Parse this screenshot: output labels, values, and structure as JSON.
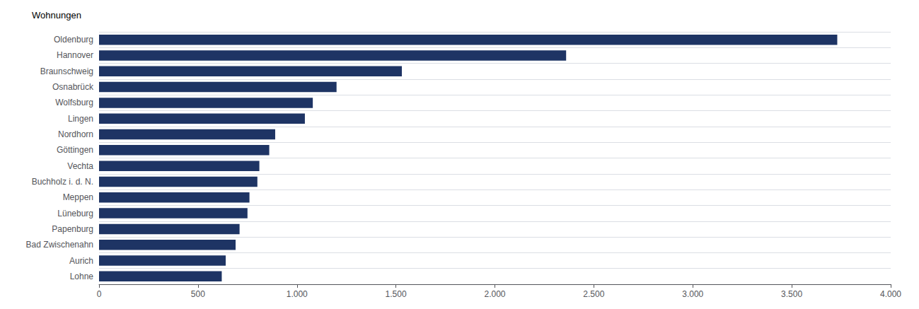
{
  "chart_data": {
    "type": "bar",
    "orientation": "horizontal",
    "xlabel": "Wohnungen",
    "categories": [
      "Lohne",
      "Aurich",
      "Bad Zwischenahn",
      "Papenburg",
      "Lüneburg",
      "Meppen",
      "Buchholz i. d. N.",
      "Vechta",
      "Göttingen",
      "Nordhorn",
      "Lingen",
      "Wolfsburg",
      "Osnabrück",
      "Braunschweig",
      "Hannover",
      "Oldenburg"
    ],
    "values": [
      620,
      640,
      690,
      710,
      750,
      760,
      800,
      810,
      860,
      890,
      1040,
      1080,
      1200,
      1530,
      2360,
      3730
    ],
    "color": "#1e3464",
    "xlim": [
      0,
      4000
    ],
    "xticks": [
      0,
      500,
      {
        "value": 1000,
        "label": "1.000"
      },
      {
        "value": 1500,
        "label": "1.500"
      },
      {
        "value": 2000,
        "label": "2.000"
      },
      {
        "value": 2500,
        "label": "2.500"
      },
      {
        "value": 3000,
        "label": "3.000"
      },
      {
        "value": 3500,
        "label": "3.500"
      },
      {
        "value": 4000,
        "label": "4.000"
      }
    ]
  }
}
